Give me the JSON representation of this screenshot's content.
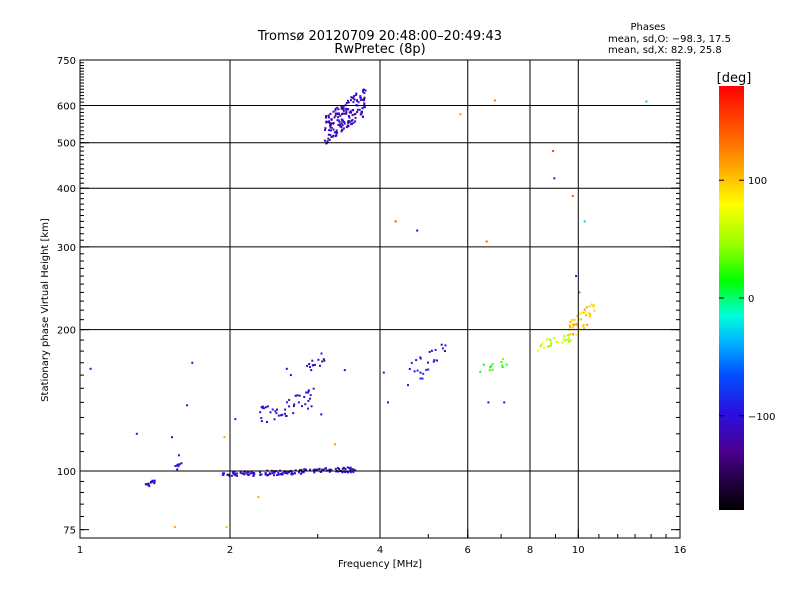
{
  "chart_data": {
    "type": "scatter",
    "title": "Tromsø 20120709 20:48:00–20:49:43",
    "subtitle": "RwPretec (8p)",
    "xlabel": "Frequency [MHz]",
    "ylabel": "Stationary phase Virtual Height [km]",
    "xscale": "log",
    "yscale": "log",
    "xlim": [
      1,
      16
    ],
    "ylim": [
      72,
      750
    ],
    "x_ticks": [
      {
        "value": 1,
        "label": "1"
      },
      {
        "value": 2,
        "label": "2"
      },
      {
        "value": 4,
        "label": "4"
      },
      {
        "value": 6,
        "label": "6"
      },
      {
        "value": 8,
        "label": "8"
      },
      {
        "value": 10,
        "label": "10"
      },
      {
        "value": 16,
        "label": "16"
      }
    ],
    "x_grid": [
      2,
      4,
      6,
      8,
      10
    ],
    "y_ticks": [
      {
        "value": 75,
        "label": "75"
      },
      {
        "value": 100,
        "label": "100"
      },
      {
        "value": 200,
        "label": "200"
      },
      {
        "value": 300,
        "label": "300"
      },
      {
        "value": 400,
        "label": "400"
      },
      {
        "value": 500,
        "label": "500"
      },
      {
        "value": 600,
        "label": "600"
      },
      {
        "value": 750,
        "label": "750"
      }
    ],
    "y_grid": [
      100,
      200,
      300,
      400,
      500,
      600
    ],
    "grid": true,
    "stats": {
      "heading": "Phases",
      "line_o": "mean, sd,O: −98.3, 17.5",
      "line_x": "mean, sd,X:  82.9, 25.8"
    },
    "colorbar": {
      "label": "[deg]",
      "range": [
        -180,
        180
      ],
      "ticks": [
        {
          "value": 100,
          "label": "100"
        },
        {
          "value": 0,
          "label": "0"
        },
        {
          "value": -100,
          "label": "−100"
        }
      ]
    },
    "clusters": [
      {
        "x_range": [
          3.1,
          3.75
        ],
        "y_range": [
          495,
          660
        ],
        "phase": -110,
        "count": 170
      },
      {
        "x_range": [
          1.93,
          3.6
        ],
        "y_range": [
          97,
          102
        ],
        "phase": -105,
        "count": 150
      },
      {
        "x_range": [
          2.3,
          2.95
        ],
        "y_range": [
          125,
          150
        ],
        "phase": -105,
        "count": 45
      },
      {
        "x_range": [
          2.85,
          3.1
        ],
        "y_range": [
          160,
          180
        ],
        "phase": -110,
        "count": 14
      },
      {
        "x_range": [
          1.35,
          1.42
        ],
        "y_range": [
          92,
          96
        ],
        "phase": -110,
        "count": 14
      },
      {
        "x_range": [
          1.55,
          1.62
        ],
        "y_range": [
          100,
          105
        ],
        "phase": -110,
        "count": 7
      },
      {
        "x_range": [
          4.5,
          5.5
        ],
        "y_range": [
          150,
          190
        ],
        "phase": -95,
        "count": 25
      },
      {
        "x_range": [
          6.3,
          7.2
        ],
        "y_range": [
          160,
          175
        ],
        "phase": 20,
        "count": 12
      },
      {
        "x_range": [
          8.3,
          9.8
        ],
        "y_range": [
          180,
          200
        ],
        "phase": 60,
        "count": 30
      },
      {
        "x_range": [
          9.6,
          10.8
        ],
        "y_range": [
          190,
          230
        ],
        "phase": 100,
        "count": 40
      }
    ],
    "points": [
      {
        "x": 1.05,
        "y": 165,
        "phase": -105
      },
      {
        "x": 1.3,
        "y": 120,
        "phase": -110
      },
      {
        "x": 1.53,
        "y": 118,
        "phase": -115
      },
      {
        "x": 1.58,
        "y": 108,
        "phase": -100
      },
      {
        "x": 1.64,
        "y": 138,
        "phase": -110
      },
      {
        "x": 1.68,
        "y": 170,
        "phase": -110
      },
      {
        "x": 1.55,
        "y": 76,
        "phase": 110
      },
      {
        "x": 1.95,
        "y": 118,
        "phase": 110
      },
      {
        "x": 2.05,
        "y": 129,
        "phase": -90
      },
      {
        "x": 1.97,
        "y": 76,
        "phase": 40
      },
      {
        "x": 2.28,
        "y": 88,
        "phase": 110
      },
      {
        "x": 2.6,
        "y": 165,
        "phase": -110
      },
      {
        "x": 2.65,
        "y": 160,
        "phase": -110
      },
      {
        "x": 2.75,
        "y": 140,
        "phase": -100
      },
      {
        "x": 3.05,
        "y": 132,
        "phase": -110
      },
      {
        "x": 3.25,
        "y": 114,
        "phase": 120
      },
      {
        "x": 3.4,
        "y": 164,
        "phase": -110
      },
      {
        "x": 4.07,
        "y": 162,
        "phase": -110
      },
      {
        "x": 4.15,
        "y": 140,
        "phase": -110
      },
      {
        "x": 4.3,
        "y": 340,
        "phase": 150
      },
      {
        "x": 4.75,
        "y": 325,
        "phase": -110
      },
      {
        "x": 5.8,
        "y": 575,
        "phase": 120
      },
      {
        "x": 6.8,
        "y": 615,
        "phase": 130
      },
      {
        "x": 6.55,
        "y": 308,
        "phase": 140
      },
      {
        "x": 8.9,
        "y": 480,
        "phase": 150
      },
      {
        "x": 8.95,
        "y": 420,
        "phase": -110
      },
      {
        "x": 9.75,
        "y": 385,
        "phase": 140
      },
      {
        "x": 10.3,
        "y": 340,
        "phase": -30
      },
      {
        "x": 13.7,
        "y": 612,
        "phase": -30
      },
      {
        "x": 9.9,
        "y": 260,
        "phase": -110
      },
      {
        "x": 10.05,
        "y": 240,
        "phase": 140
      },
      {
        "x": 6.6,
        "y": 140,
        "phase": -110
      },
      {
        "x": 7.1,
        "y": 140,
        "phase": -110
      }
    ]
  }
}
